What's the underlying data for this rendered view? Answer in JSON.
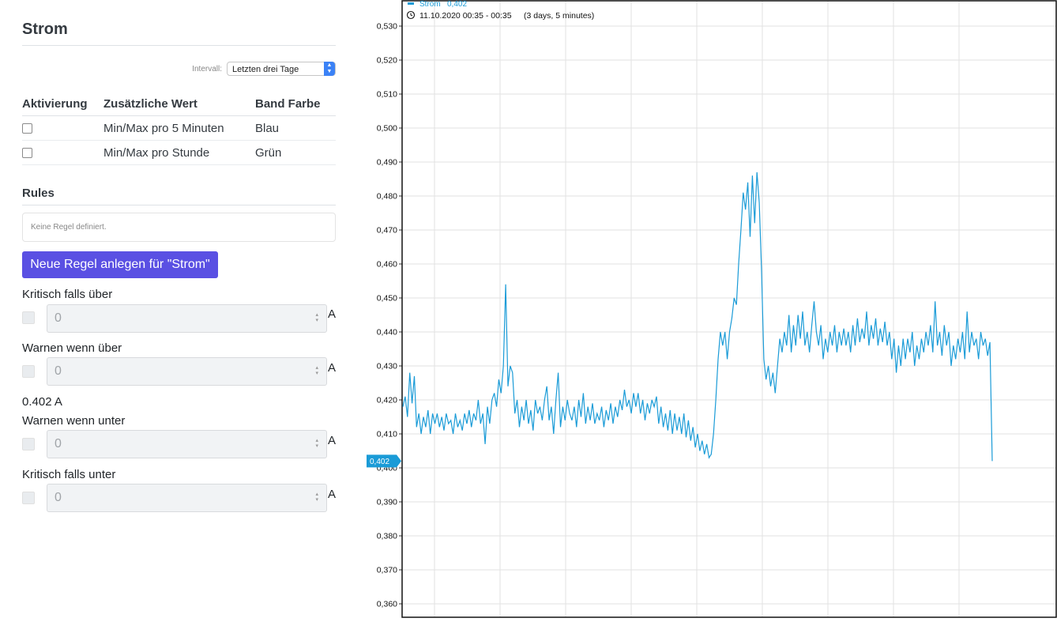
{
  "panel": {
    "title": "Strom",
    "interval_label": "Intervall:",
    "interval_value": "Letzten drei Tage"
  },
  "bands_table": {
    "headers": [
      "Aktivierung",
      "Zusätzliche Wert",
      "Band Farbe"
    ],
    "rows": [
      {
        "value": "Min/Max pro 5 Minuten",
        "color": "Blau"
      },
      {
        "value": "Min/Max pro Stunde",
        "color": "Grün"
      }
    ]
  },
  "rules": {
    "heading": "Rules",
    "empty_text": "Keine Regel definiert.",
    "new_button": "Neue Regel anlegen für \"Strom\""
  },
  "thresholds": [
    {
      "label": "Kritisch falls über",
      "value": "0",
      "unit": "A"
    },
    {
      "label": "Warnen wenn über",
      "value": "0",
      "unit": "A"
    },
    {
      "label": "Warnen wenn unter",
      "value": "0",
      "unit": "A"
    },
    {
      "label": "Kritisch falls unter",
      "value": "0",
      "unit": "A"
    }
  ],
  "current_value": "0.402 A",
  "colors": {
    "line": "#1a9bd7",
    "button": "#5a50e3",
    "marker": "#1a9bd7"
  },
  "chart_data": {
    "type": "line",
    "legend": {
      "series": "Strom",
      "value": "0,402"
    },
    "time_range": "11.10.2020 00:35 - 00:35",
    "duration": "(3 days, 5 minutes)",
    "current_marker": "0,402",
    "y_ticks": [
      "0,360",
      "0,370",
      "0,380",
      "0,390",
      "0,400",
      "0,410",
      "0,420",
      "0,430",
      "0,440",
      "0,450",
      "0,460",
      "0,470",
      "0,480",
      "0,490",
      "0,500",
      "0,510",
      "0,520",
      "0,530"
    ],
    "ylim": [
      0.36,
      0.534
    ],
    "grid": true,
    "x_gridlines": 9,
    "series": [
      {
        "name": "Strom",
        "values": [
          0.418,
          0.421,
          0.415,
          0.428,
          0.419,
          0.427,
          0.412,
          0.416,
          0.41,
          0.415,
          0.412,
          0.417,
          0.41,
          0.416,
          0.413,
          0.416,
          0.412,
          0.415,
          0.411,
          0.416,
          0.413,
          0.414,
          0.41,
          0.416,
          0.412,
          0.414,
          0.411,
          0.416,
          0.413,
          0.417,
          0.412,
          0.416,
          0.414,
          0.42,
          0.413,
          0.416,
          0.407,
          0.418,
          0.413,
          0.42,
          0.422,
          0.418,
          0.426,
          0.422,
          0.43,
          0.454,
          0.424,
          0.43,
          0.428,
          0.416,
          0.42,
          0.412,
          0.418,
          0.414,
          0.42,
          0.413,
          0.417,
          0.411,
          0.42,
          0.416,
          0.418,
          0.414,
          0.42,
          0.424,
          0.414,
          0.418,
          0.41,
          0.42,
          0.428,
          0.412,
          0.418,
          0.414,
          0.42,
          0.416,
          0.414,
          0.418,
          0.412,
          0.42,
          0.415,
          0.422,
          0.413,
          0.418,
          0.414,
          0.419,
          0.413,
          0.416,
          0.414,
          0.418,
          0.412,
          0.417,
          0.414,
          0.419,
          0.413,
          0.418,
          0.415,
          0.42,
          0.417,
          0.423,
          0.418,
          0.42,
          0.416,
          0.422,
          0.418,
          0.422,
          0.416,
          0.42,
          0.414,
          0.419,
          0.416,
          0.42,
          0.418,
          0.421,
          0.413,
          0.418,
          0.412,
          0.416,
          0.411,
          0.417,
          0.41,
          0.416,
          0.411,
          0.415,
          0.41,
          0.416,
          0.409,
          0.414,
          0.408,
          0.412,
          0.406,
          0.41,
          0.405,
          0.408,
          0.404,
          0.407,
          0.403,
          0.404,
          0.41,
          0.42,
          0.432,
          0.44,
          0.436,
          0.44,
          0.432,
          0.44,
          0.444,
          0.45,
          0.448,
          0.46,
          0.47,
          0.481,
          0.476,
          0.484,
          0.468,
          0.486,
          0.472,
          0.487,
          0.478,
          0.458,
          0.432,
          0.426,
          0.43,
          0.424,
          0.428,
          0.422,
          0.43,
          0.438,
          0.434,
          0.44,
          0.436,
          0.445,
          0.434,
          0.442,
          0.436,
          0.445,
          0.438,
          0.446,
          0.436,
          0.44,
          0.434,
          0.442,
          0.449,
          0.44,
          0.436,
          0.442,
          0.432,
          0.438,
          0.434,
          0.44,
          0.436,
          0.442,
          0.434,
          0.44,
          0.436,
          0.441,
          0.436,
          0.44,
          0.434,
          0.442,
          0.436,
          0.444,
          0.437,
          0.441,
          0.438,
          0.446,
          0.436,
          0.442,
          0.438,
          0.444,
          0.436,
          0.441,
          0.437,
          0.443,
          0.436,
          0.44,
          0.432,
          0.438,
          0.428,
          0.436,
          0.43,
          0.438,
          0.432,
          0.438,
          0.434,
          0.44,
          0.43,
          0.436,
          0.432,
          0.438,
          0.434,
          0.44,
          0.436,
          0.442,
          0.434,
          0.449,
          0.436,
          0.44,
          0.433,
          0.442,
          0.436,
          0.44,
          0.43,
          0.436,
          0.432,
          0.438,
          0.434,
          0.44,
          0.432,
          0.446,
          0.434,
          0.44,
          0.436,
          0.438,
          0.432,
          0.44,
          0.436,
          0.438,
          0.433,
          0.437,
          0.402
        ]
      }
    ]
  }
}
